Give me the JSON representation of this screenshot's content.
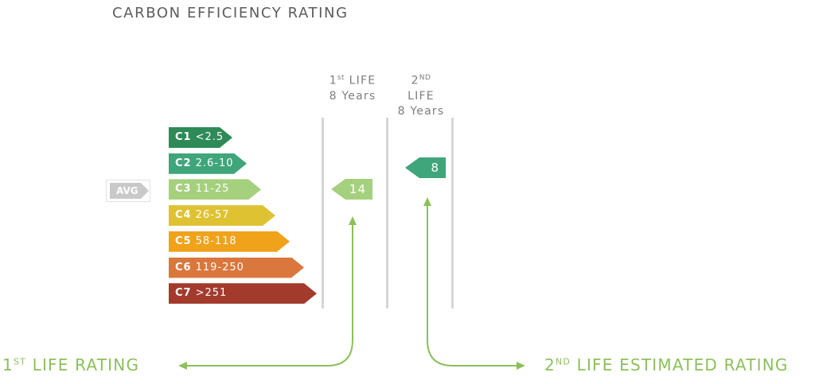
{
  "title": "CARBON EFFICIENCY RATING",
  "columns": {
    "first": {
      "num": "1",
      "sup": "st",
      "word": "LIFE",
      "years": "8 Years"
    },
    "second": {
      "num": "2",
      "sup": "ND",
      "word": "LIFE",
      "years": "8 Years"
    }
  },
  "bands": [
    {
      "code": "C1",
      "range": "<2.5",
      "color": "#2e8b57"
    },
    {
      "code": "C2",
      "range": "2.6-10",
      "color": "#3fa57a"
    },
    {
      "code": "C3",
      "range": "11-25",
      "color": "#a5d07d"
    },
    {
      "code": "C4",
      "range": "26-57",
      "color": "#dfc232"
    },
    {
      "code": "C5",
      "range": "58-118",
      "color": "#f0a21a"
    },
    {
      "code": "C6",
      "range": "119-250",
      "color": "#d9773d"
    },
    {
      "code": "C7",
      "range": ">251",
      "color": "#a33b2d"
    }
  ],
  "avg_label": "AVG",
  "first_life_marker": {
    "value": "14",
    "band": "C3",
    "color": "#a5d07d"
  },
  "second_life_marker": {
    "value": "8",
    "band": "C2",
    "color": "#3fa57a"
  },
  "first_life_rating": {
    "num": "1",
    "sup": "ST",
    "text": "LIFE RATING"
  },
  "second_life_rating": {
    "num": "2",
    "sup": "ND",
    "text": "LIFE ESTIMATED RATING"
  },
  "colors": {
    "arrow": "#8cc05a",
    "divider": "#d6d6d6",
    "title": "#5c5c5c"
  }
}
